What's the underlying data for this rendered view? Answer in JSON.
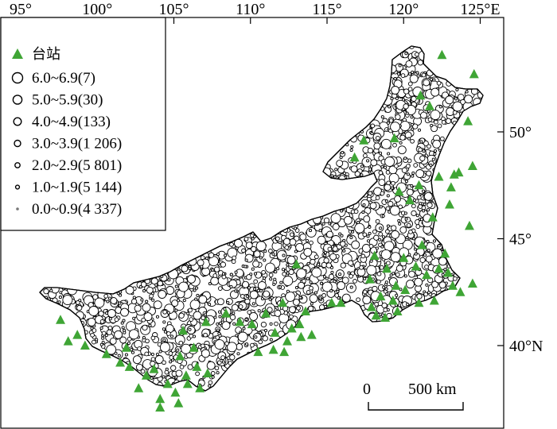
{
  "map": {
    "lon_ticks": [
      {
        "lon": 95,
        "label": "95°"
      },
      {
        "lon": 100,
        "label": "100°"
      },
      {
        "lon": 105,
        "label": "105°"
      },
      {
        "lon": 110,
        "label": "110°"
      },
      {
        "lon": 115,
        "label": "115°"
      },
      {
        "lon": 120,
        "label": "120°"
      },
      {
        "lon": 125,
        "label": "125°E"
      }
    ],
    "lat_ticks": [
      {
        "lat": 50,
        "label": "50°"
      },
      {
        "lat": 45,
        "label": "45°"
      },
      {
        "lat": 40,
        "label": "40°N"
      }
    ],
    "legend": {
      "station_label": "台站",
      "magnitude_classes": [
        {
          "label": "6.0~6.9(7)"
        },
        {
          "label": "5.0~5.9(30)"
        },
        {
          "label": "4.0~4.9(133)"
        },
        {
          "label": "3.0~3.9(1 206)"
        },
        {
          "label": "2.0~2.9(5 801)"
        },
        {
          "label": "1.0~1.9(5 144)"
        },
        {
          "label": "0.0~0.9(4 337)"
        }
      ]
    },
    "scale_bar": {
      "zero_label": "0",
      "length_label": "500 km"
    },
    "colors": {
      "station": "#3fa535",
      "event_stroke": "#000000",
      "event_fill": "#ffffff",
      "small_event": "#777777"
    },
    "stations": [
      [
        122.5,
        53.6
      ],
      [
        124.6,
        52.7
      ],
      [
        121.1,
        51.7
      ],
      [
        121.7,
        51.2
      ],
      [
        124.2,
        50.5
      ],
      [
        117.4,
        49.6
      ],
      [
        119.4,
        49.7
      ],
      [
        116.8,
        48.8
      ],
      [
        124.5,
        48.4
      ],
      [
        123.3,
        48.0
      ],
      [
        122.3,
        47.9
      ],
      [
        123.6,
        48.1
      ],
      [
        121.0,
        47.5
      ],
      [
        123.1,
        47.4
      ],
      [
        119.7,
        47.2
      ],
      [
        120.4,
        46.8
      ],
      [
        123.0,
        46.6
      ],
      [
        121.9,
        46.0
      ],
      [
        124.3,
        45.6
      ],
      [
        121.2,
        44.7
      ],
      [
        120.0,
        44.1
      ],
      [
        120.8,
        43.7
      ],
      [
        122.7,
        44.3
      ],
      [
        122.3,
        43.6
      ],
      [
        121.5,
        43.3
      ],
      [
        122.9,
        43.4
      ],
      [
        124.5,
        42.9
      ],
      [
        123.2,
        42.8
      ],
      [
        123.7,
        42.5
      ],
      [
        118.1,
        44.2
      ],
      [
        113.0,
        43.8
      ],
      [
        118.9,
        43.6
      ],
      [
        117.8,
        43.1
      ],
      [
        119.5,
        42.8
      ],
      [
        120.1,
        42.6
      ],
      [
        118.5,
        42.3
      ],
      [
        119.3,
        42.1
      ],
      [
        122.0,
        42.1
      ],
      [
        121.0,
        42.0
      ],
      [
        117.9,
        41.8
      ],
      [
        119.6,
        41.6
      ],
      [
        118.2,
        41.4
      ],
      [
        118.8,
        41.3
      ],
      [
        115.3,
        42.0
      ],
      [
        115.9,
        42.0
      ],
      [
        112.1,
        42.0
      ],
      [
        111.0,
        41.5
      ],
      [
        113.6,
        41.6
      ],
      [
        113.2,
        41.0
      ],
      [
        112.7,
        40.8
      ],
      [
        110.1,
        41.0
      ],
      [
        109.3,
        41.1
      ],
      [
        111.6,
        40.6
      ],
      [
        112.4,
        40.2
      ],
      [
        113.3,
        40.4
      ],
      [
        114.0,
        40.5
      ],
      [
        112.2,
        39.7
      ],
      [
        111.5,
        39.8
      ],
      [
        110.5,
        39.7
      ],
      [
        108.4,
        41.5
      ],
      [
        107.1,
        41.1
      ],
      [
        105.6,
        40.7
      ],
      [
        106.3,
        39.9
      ],
      [
        105.4,
        39.5
      ],
      [
        106.5,
        39.0
      ],
      [
        105.8,
        38.6
      ],
      [
        105.9,
        38.2
      ],
      [
        106.7,
        38.0
      ],
      [
        107.2,
        38.7
      ],
      [
        104.6,
        38.2
      ],
      [
        103.7,
        38.9
      ],
      [
        103.2,
        38.6
      ],
      [
        102.1,
        39.0
      ],
      [
        101.5,
        39.2
      ],
      [
        100.6,
        39.6
      ],
      [
        101.9,
        39.9
      ],
      [
        99.2,
        40.0
      ],
      [
        98.1,
        40.2
      ],
      [
        98.7,
        40.5
      ],
      [
        97.6,
        41.2
      ],
      [
        102.7,
        38.0
      ],
      [
        104.1,
        37.5
      ],
      [
        105.1,
        37.8
      ],
      [
        104.1,
        37.1
      ],
      [
        105.3,
        37.3
      ]
    ]
  }
}
